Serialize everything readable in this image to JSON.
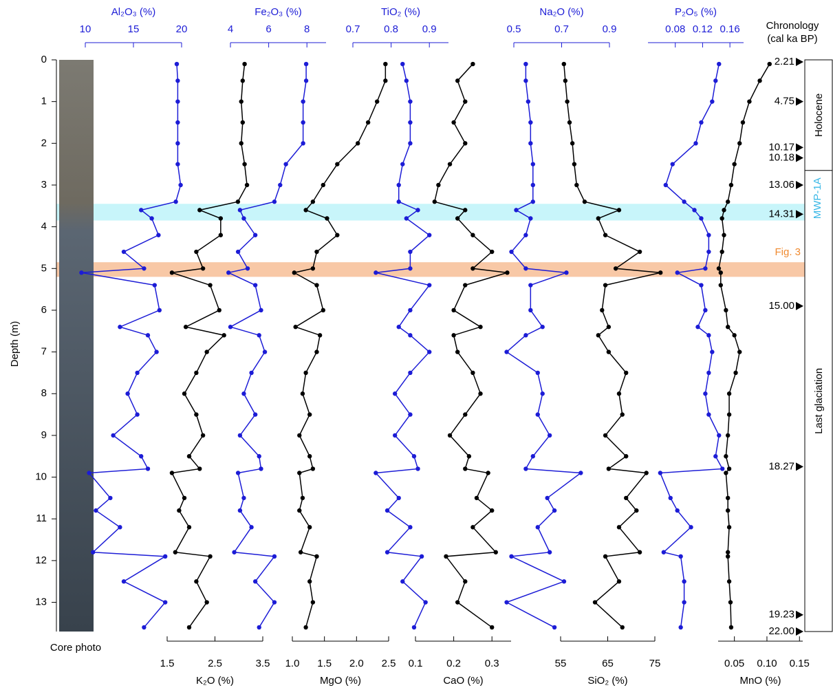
{
  "chart_data": {
    "type": "line",
    "ylabel": "Depth (m)",
    "ylim": [
      0,
      13.7
    ],
    "yticks": [
      0,
      1,
      2,
      3,
      4,
      5,
      6,
      7,
      8,
      9,
      10,
      11,
      12,
      13
    ],
    "depth": [
      0.1,
      0.5,
      1.0,
      1.5,
      2.0,
      2.5,
      3.0,
      3.4,
      3.6,
      3.8,
      4.2,
      4.6,
      5.0,
      5.1,
      5.4,
      6.0,
      6.4,
      6.6,
      7.0,
      7.5,
      8.0,
      8.5,
      9.0,
      9.5,
      9.8,
      9.9,
      10.5,
      10.8,
      11.2,
      11.8,
      11.9,
      12.5,
      13.0,
      13.6
    ],
    "series": [
      {
        "name": "Al₂O₃ (%)",
        "color": "#1c1cd6",
        "axis": "top",
        "xlim": [
          10,
          20
        ],
        "xticks": [
          10,
          15,
          20
        ],
        "values": [
          19.5,
          19.6,
          19.6,
          19.6,
          19.6,
          19.6,
          19.9,
          19.4,
          15.8,
          16.9,
          17.6,
          14.0,
          16.1,
          9.6,
          17.2,
          17.7,
          13.6,
          16.5,
          17.4,
          15.4,
          14.4,
          15.4,
          12.9,
          15.8,
          16.5,
          10.4,
          12.6,
          11.1,
          13.6,
          10.8,
          18.3,
          14.0,
          18.3,
          16.1
        ]
      },
      {
        "name": "K₂O (%)",
        "color": "#000000",
        "axis": "bottom",
        "xlim": [
          1.5,
          3.5
        ],
        "xticks": [
          1.5,
          2.5,
          3.5
        ],
        "values": [
          3.12,
          3.08,
          3.05,
          3.08,
          3.05,
          3.12,
          3.17,
          2.98,
          2.18,
          2.62,
          2.62,
          2.11,
          2.25,
          1.6,
          2.4,
          2.59,
          1.89,
          2.69,
          2.33,
          2.11,
          1.86,
          2.11,
          2.25,
          1.96,
          2.18,
          1.6,
          1.86,
          1.75,
          1.96,
          1.67,
          2.4,
          2.11,
          2.33,
          1.96
        ]
      },
      {
        "name": "Fe₂O₃ (%)",
        "color": "#1c1cd6",
        "axis": "top",
        "xlim": [
          4,
          9
        ],
        "xticks": [
          4,
          6,
          8
        ],
        "values": [
          7.96,
          7.96,
          7.8,
          7.8,
          7.8,
          6.9,
          6.6,
          6.3,
          4.5,
          4.7,
          5.3,
          4.4,
          4.9,
          3.9,
          5.3,
          5.6,
          4.0,
          5.5,
          5.8,
          5.1,
          4.7,
          5.3,
          4.5,
          5.5,
          5.6,
          4.4,
          4.7,
          4.5,
          5.1,
          4.2,
          6.3,
          5.3,
          6.3,
          5.5
        ]
      },
      {
        "name": "MgO (%)",
        "color": "#000000",
        "axis": "bottom",
        "xlim": [
          1.0,
          2.5
        ],
        "xticks": [
          {
            "value": 1.0,
            "label": "1.0"
          },
          1.5,
          {
            "value": 2.0,
            "label": "2.0"
          },
          2.5
        ],
        "values": [
          2.45,
          2.45,
          2.32,
          2.18,
          2.02,
          1.7,
          1.48,
          1.32,
          1.21,
          1.54,
          1.7,
          1.38,
          1.32,
          1.03,
          1.38,
          1.48,
          1.05,
          1.43,
          1.38,
          1.21,
          1.16,
          1.27,
          1.11,
          1.27,
          1.32,
          1.11,
          1.16,
          1.11,
          1.27,
          1.13,
          1.38,
          1.27,
          1.32,
          1.21
        ]
      },
      {
        "name": "TiO₂ (%)",
        "color": "#1c1cd6",
        "axis": "top",
        "xlim": [
          0.7,
          0.95
        ],
        "xticks": [
          0.7,
          0.8,
          0.9
        ],
        "values": [
          0.83,
          0.84,
          0.85,
          0.85,
          0.85,
          0.83,
          0.82,
          0.82,
          0.87,
          0.84,
          0.9,
          0.85,
          0.85,
          0.76,
          0.9,
          0.85,
          0.82,
          0.85,
          0.9,
          0.85,
          0.81,
          0.85,
          0.81,
          0.86,
          0.87,
          0.76,
          0.82,
          0.79,
          0.85,
          0.79,
          0.88,
          0.83,
          0.89,
          0.86
        ]
      },
      {
        "name": "CaO (%)",
        "color": "#000000",
        "axis": "bottom",
        "xlim": [
          0.1,
          0.35
        ],
        "xticks": [
          0.1,
          0.2,
          0.3
        ],
        "values": [
          0.25,
          0.21,
          0.23,
          0.2,
          0.23,
          0.19,
          0.16,
          0.15,
          0.23,
          0.21,
          0.25,
          0.3,
          0.25,
          0.34,
          0.23,
          0.2,
          0.27,
          0.2,
          0.21,
          0.25,
          0.27,
          0.23,
          0.19,
          0.24,
          0.23,
          0.29,
          0.26,
          0.3,
          0.25,
          0.31,
          0.18,
          0.23,
          0.21,
          0.3
        ]
      },
      {
        "name": "Na₂O (%)",
        "color": "#1c1cd6",
        "axis": "top",
        "xlim": [
          0.5,
          0.9
        ],
        "xticks": [
          0.5,
          0.7,
          0.9
        ],
        "values": [
          0.55,
          0.55,
          0.56,
          0.57,
          0.57,
          0.58,
          0.58,
          0.58,
          0.51,
          0.57,
          0.55,
          0.49,
          0.55,
          0.72,
          0.57,
          0.57,
          0.62,
          0.55,
          0.47,
          0.6,
          0.62,
          0.6,
          0.65,
          0.58,
          0.55,
          0.78,
          0.64,
          0.67,
          0.6,
          0.65,
          0.49,
          0.71,
          0.47,
          0.67
        ]
      },
      {
        "name": "SiO₂ (%)",
        "color": "#000000",
        "axis": "bottom",
        "xlim": [
          55,
          75
        ],
        "xticks": [
          55,
          65,
          75
        ],
        "values": [
          55.7,
          56,
          56.4,
          56.9,
          57.5,
          57.9,
          58.4,
          60.1,
          67.4,
          63,
          64.5,
          71.8,
          66.7,
          76.2,
          64.5,
          63.8,
          65.2,
          63,
          65.2,
          68.9,
          67.4,
          68.1,
          64.5,
          68.9,
          65.2,
          73.2,
          68.9,
          71.1,
          67.4,
          71.8,
          64.5,
          67.4,
          62.3,
          68.1
        ]
      },
      {
        "name": "P₂O₅ (%)",
        "color": "#1c1cd6",
        "axis": "top",
        "xlim": [
          0.04,
          0.18
        ],
        "xticks": [
          0.08,
          0.12,
          0.16
        ],
        "values": [
          0.144,
          0.139,
          0.134,
          0.118,
          0.11,
          0.076,
          0.066,
          0.093,
          0.108,
          0.118,
          0.129,
          0.129,
          0.124,
          0.083,
          0.118,
          0.124,
          0.113,
          0.129,
          0.134,
          0.129,
          0.124,
          0.129,
          0.144,
          0.139,
          0.149,
          0.058,
          0.073,
          0.083,
          0.103,
          0.063,
          0.088,
          0.093,
          0.093,
          0.088
        ]
      },
      {
        "name": "MnO (%)",
        "color": "#000000",
        "axis": "bottom",
        "xlim": [
          0.025,
          0.155
        ],
        "xticks": [
          0.05,
          {
            "value": 0.1,
            "label": "0.10"
          },
          0.15
        ],
        "values": [
          0.104,
          0.089,
          0.073,
          0.063,
          0.058,
          0.05,
          0.045,
          0.04,
          0.034,
          0.031,
          0.034,
          0.031,
          0.026,
          0.029,
          0.029,
          0.037,
          0.04,
          0.05,
          0.058,
          0.052,
          0.042,
          0.042,
          0.04,
          0.037,
          0.042,
          0.037,
          0.04,
          0.04,
          0.042,
          0.04,
          0.04,
          0.042,
          0.044,
          0.045
        ]
      }
    ],
    "core_label": "Core photo",
    "chronology": {
      "title": [
        "Chronology",
        "(cal ka BP)"
      ],
      "ages": [
        "2.21",
        "4.75",
        "10.17",
        "10.18",
        "13.06",
        "14.31",
        "15.00",
        "18.27",
        "19.23",
        "22.00"
      ],
      "depths": [
        0.05,
        1.0,
        2.1,
        2.35,
        3.0,
        3.7,
        5.9,
        9.75,
        13.3,
        13.7
      ]
    },
    "zones": [
      {
        "label": "Holocene",
        "top": 0,
        "bottom": 2.65
      },
      {
        "label": "Last glaciation",
        "top": 2.65,
        "bottom": 13.7
      }
    ],
    "bands": [
      {
        "label": "MWP-1A",
        "top": 3.45,
        "bottom": 3.85,
        "color": "#c8f5fa",
        "text_color": "#3bb8e6"
      },
      {
        "label": "Fig. 3",
        "top": 4.85,
        "bottom": 5.2,
        "color": "#f8c8a6",
        "text_color": "#f08a30"
      }
    ]
  }
}
